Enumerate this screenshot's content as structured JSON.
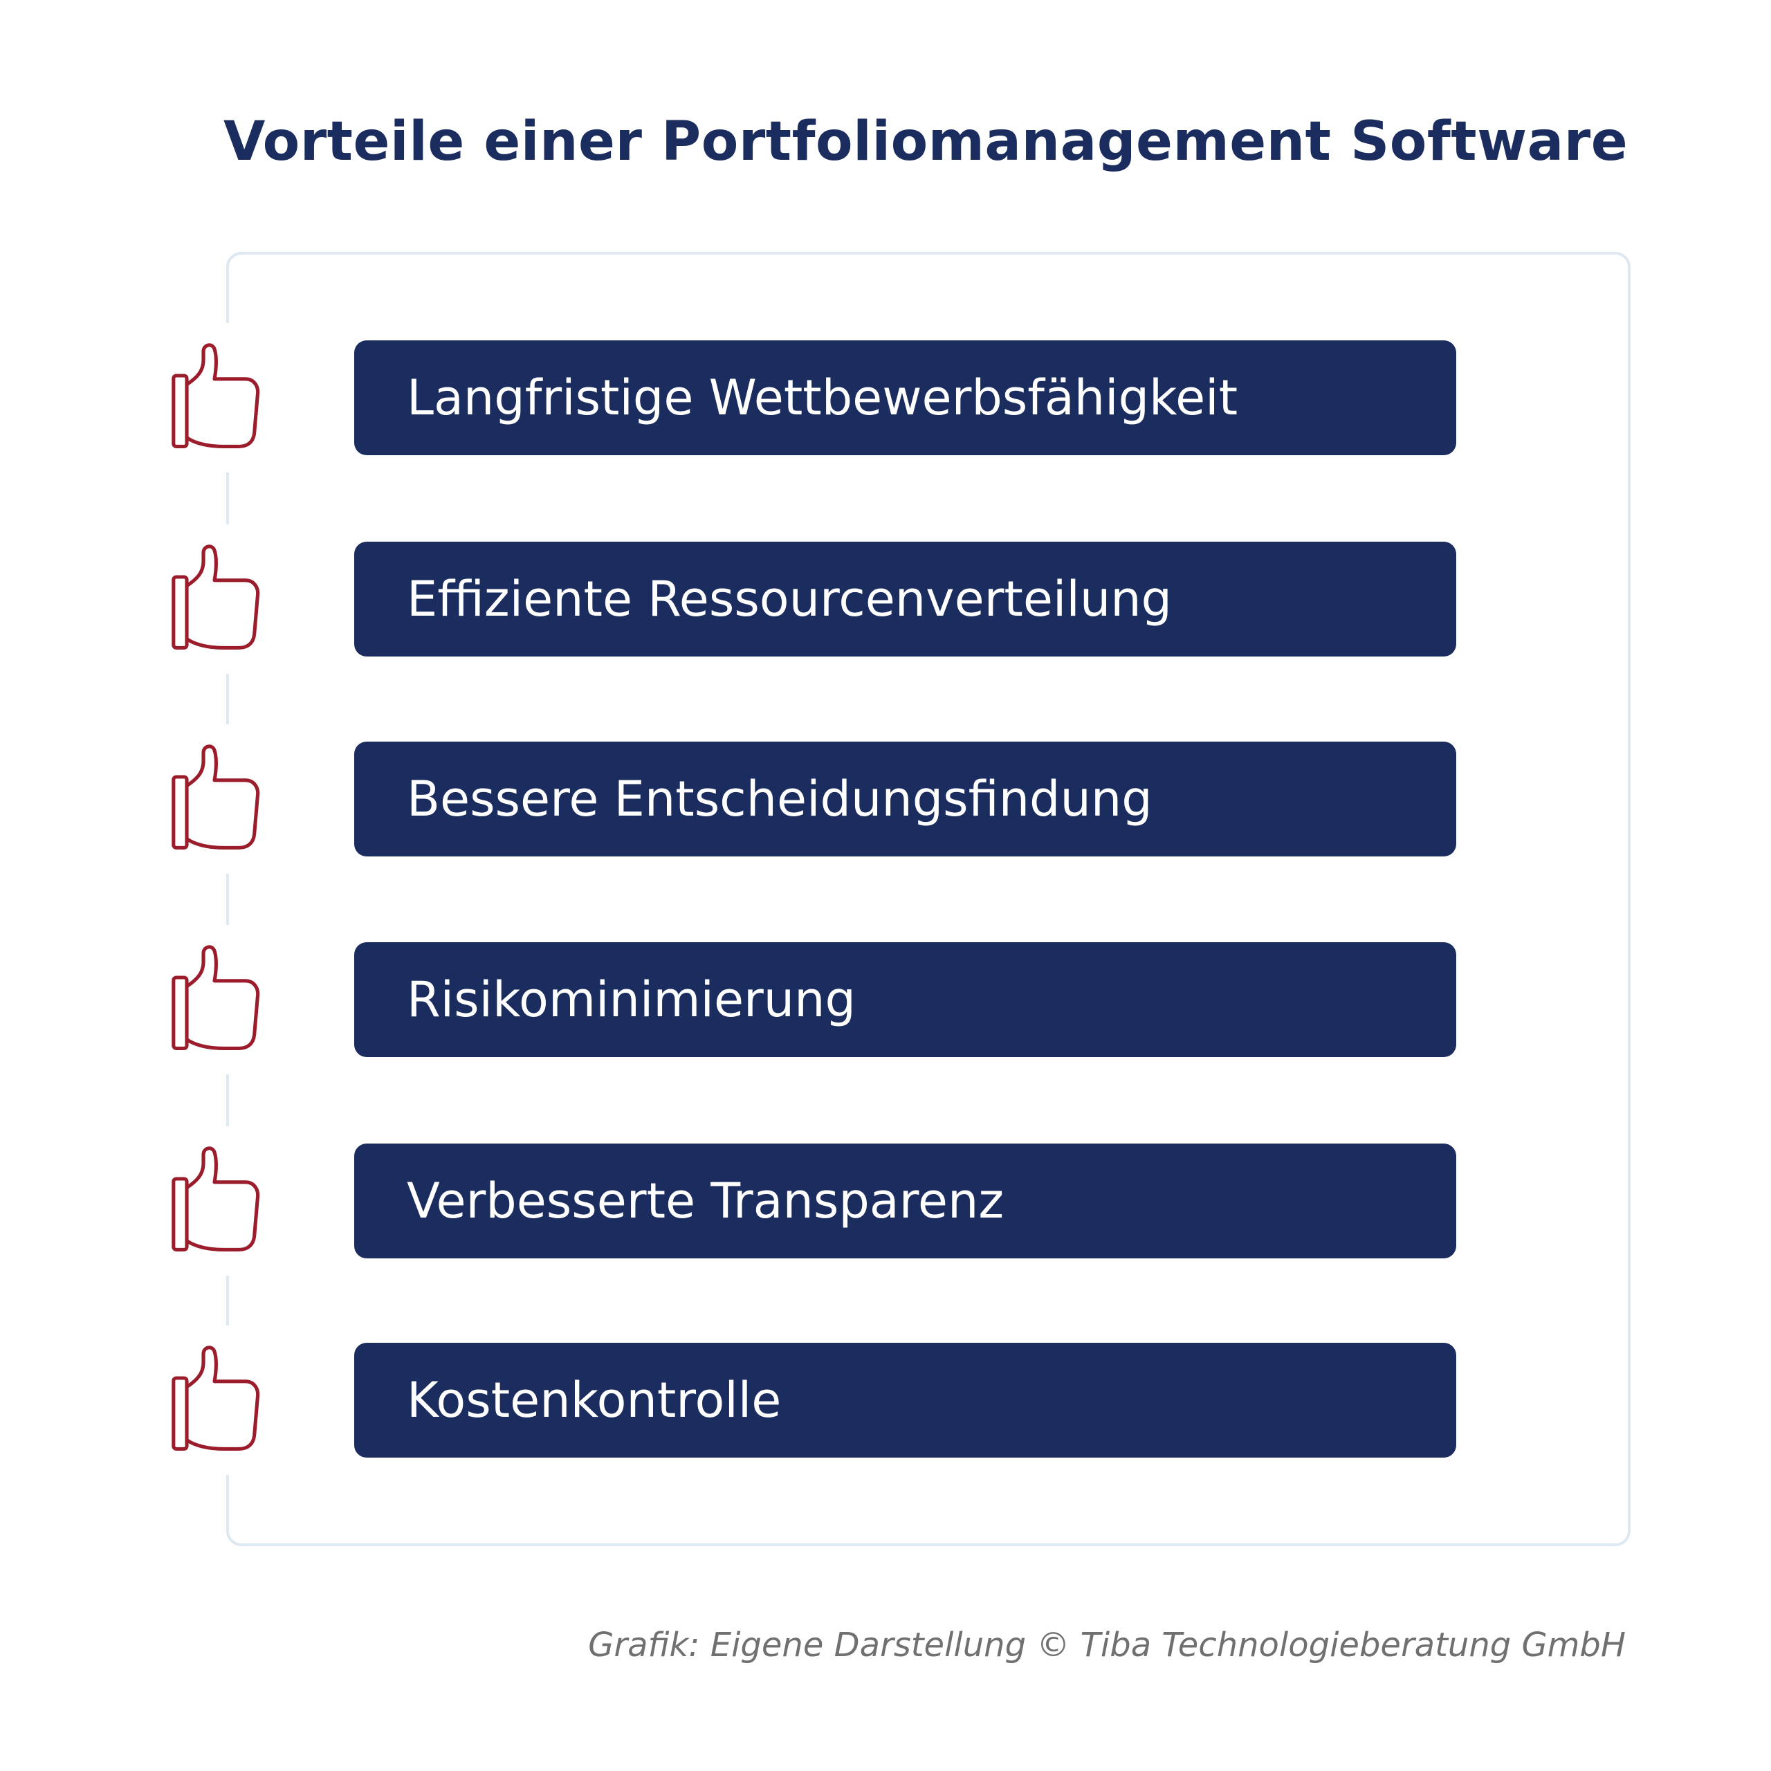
{
  "title": "Vorteile einer Portfoliomanagement Software",
  "colors": {
    "navy": "#1b2c5e",
    "accent_red": "#9b1c2b",
    "frame": "#dde8f0"
  },
  "items": [
    {
      "label": "Langfristige Wettbewerbsfähigkeit",
      "icon": "thumbs-up-icon"
    },
    {
      "label": "Effiziente Ressourcenverteilung",
      "icon": "thumbs-up-icon"
    },
    {
      "label": "Bessere Entscheidungsfindung",
      "icon": "thumbs-up-icon"
    },
    {
      "label": "Risikominimierung",
      "icon": "thumbs-up-icon"
    },
    {
      "label": "Verbesserte Transparenz",
      "icon": "thumbs-up-icon"
    },
    {
      "label": "Kostenkontrolle",
      "icon": "thumbs-up-icon"
    }
  ],
  "caption": "Grafik: Eigene Darstellung © Tiba Technologieberatung GmbH"
}
